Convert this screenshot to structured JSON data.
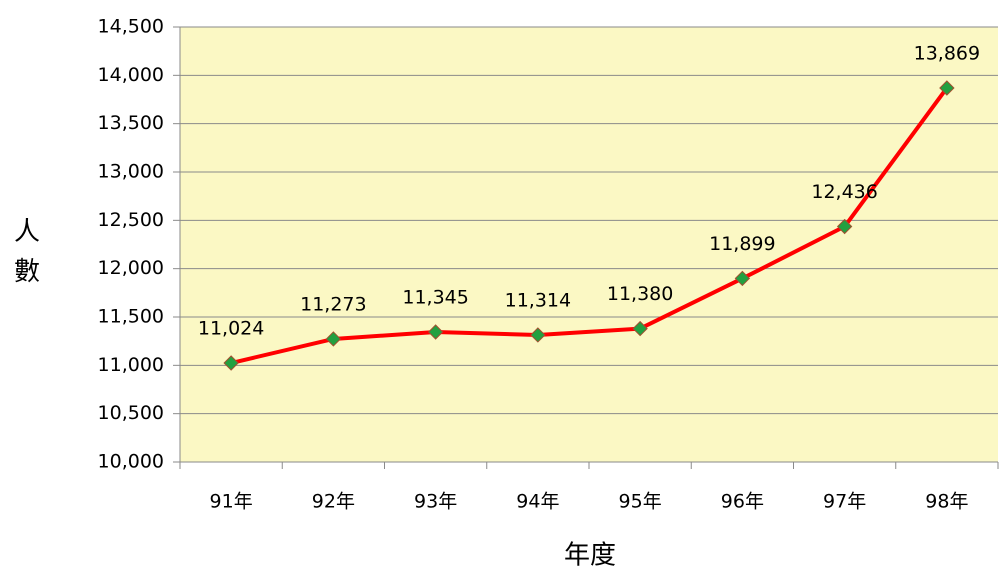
{
  "chart_data": {
    "type": "line",
    "y_label": "人數",
    "x_label": "年度",
    "categories": [
      "91年",
      "92年",
      "93年",
      "94年",
      "95年",
      "96年",
      "97年",
      "98年"
    ],
    "series": [
      {
        "name": "人數",
        "color": "#ff0000",
        "marker_color": "#22a040",
        "values": [
          11024,
          11273,
          11345,
          11314,
          11380,
          11899,
          12436,
          13869
        ],
        "value_labels": [
          "11,024",
          "11,273",
          "11,345",
          "11,314",
          "11,380",
          "11,899",
          "12,436",
          "13,869"
        ]
      }
    ],
    "ylim": [
      10000,
      14500
    ],
    "yticks": [
      {
        "value": 10000,
        "label": "10,000"
      },
      {
        "value": 10500,
        "label": "10,500"
      },
      {
        "value": 11000,
        "label": "11,000"
      },
      {
        "value": 11500,
        "label": "11,500"
      },
      {
        "value": 12000,
        "label": "12,000"
      },
      {
        "value": 12500,
        "label": "12,500"
      },
      {
        "value": 13000,
        "label": "13,000"
      },
      {
        "value": 13500,
        "label": "13,500"
      },
      {
        "value": 14000,
        "label": "14,000"
      },
      {
        "value": 14500,
        "label": "14,500"
      }
    ],
    "grid": true,
    "background": "#fbf8c4"
  }
}
